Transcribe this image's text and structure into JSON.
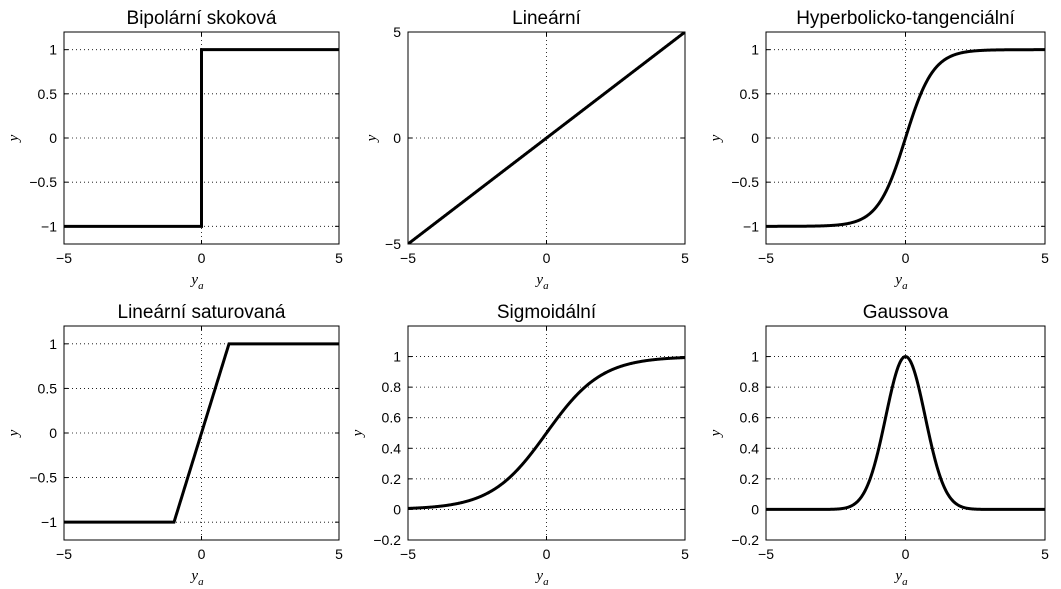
{
  "charts": [
    {
      "type": "line",
      "title": "Bipolární skoková",
      "xlabel": "y",
      "xlabel_sub": "a",
      "ylabel": "y",
      "xlim": [
        -5,
        5
      ],
      "ylim": [
        -1.2,
        1.2
      ],
      "xticks": [
        -5,
        0,
        5
      ],
      "xtick_labels": [
        "−5",
        "0",
        "5"
      ],
      "yticks": [
        -1,
        -0.5,
        0,
        0.5,
        1
      ],
      "ytick_labels": [
        "−1",
        "−0.5",
        "0",
        "0.5",
        "1"
      ],
      "grid": true,
      "color": "#000000",
      "function": "bipolar_step"
    },
    {
      "type": "line",
      "title": "Lineární",
      "xlabel": "y",
      "xlabel_sub": "a",
      "ylabel": "y",
      "xlim": [
        -5,
        5
      ],
      "ylim": [
        -5,
        5
      ],
      "xticks": [
        -5,
        0,
        5
      ],
      "xtick_labels": [
        "−5",
        "0",
        "5"
      ],
      "yticks": [
        -5,
        0,
        5
      ],
      "ytick_labels": [
        "−5",
        "0",
        "5"
      ],
      "grid": true,
      "color": "#000000",
      "function": "linear"
    },
    {
      "type": "line",
      "title": "Hyperbolicko-tangenciální",
      "xlabel": "y",
      "xlabel_sub": "a",
      "ylabel": "y",
      "xlim": [
        -5,
        5
      ],
      "ylim": [
        -1.2,
        1.2
      ],
      "xticks": [
        -5,
        0,
        5
      ],
      "xtick_labels": [
        "−5",
        "0",
        "5"
      ],
      "yticks": [
        -1,
        -0.5,
        0,
        0.5,
        1
      ],
      "ytick_labels": [
        "−1",
        "−0.5",
        "0",
        "0.5",
        "1"
      ],
      "grid": true,
      "color": "#000000",
      "function": "tanh"
    },
    {
      "type": "line",
      "title": "Lineární saturovaná",
      "xlabel": "y",
      "xlabel_sub": "a",
      "ylabel": "y",
      "xlim": [
        -5,
        5
      ],
      "ylim": [
        -1.2,
        1.2
      ],
      "xticks": [
        -5,
        0,
        5
      ],
      "xtick_labels": [
        "−5",
        "0",
        "5"
      ],
      "yticks": [
        -1,
        -0.5,
        0,
        0.5,
        1
      ],
      "ytick_labels": [
        "−1",
        "−0.5",
        "0",
        "0.5",
        "1"
      ],
      "grid": true,
      "color": "#000000",
      "function": "saturated_linear"
    },
    {
      "type": "line",
      "title": "Sigmoidální",
      "xlabel": "y",
      "xlabel_sub": "a",
      "ylabel": "y",
      "xlim": [
        -5,
        5
      ],
      "ylim": [
        -0.2,
        1.2
      ],
      "xticks": [
        -5,
        0,
        5
      ],
      "xtick_labels": [
        "−5",
        "0",
        "5"
      ],
      "yticks": [
        -0.2,
        0,
        0.2,
        0.4,
        0.6,
        0.8,
        1
      ],
      "ytick_labels": [
        "−0.2",
        "0",
        "0.2",
        "0.4",
        "0.6",
        "0.8",
        "1"
      ],
      "grid": true,
      "color": "#000000",
      "function": "sigmoid"
    },
    {
      "type": "line",
      "title": "Gaussova",
      "xlabel": "y",
      "xlabel_sub": "a",
      "ylabel": "y",
      "xlim": [
        -5,
        5
      ],
      "ylim": [
        -0.2,
        1.2
      ],
      "xticks": [
        -5,
        0,
        5
      ],
      "xtick_labels": [
        "−5",
        "0",
        "5"
      ],
      "yticks": [
        -0.2,
        0,
        0.2,
        0.4,
        0.6,
        0.8,
        1
      ],
      "ytick_labels": [
        "−0.2",
        "0",
        "0.2",
        "0.4",
        "0.6",
        "0.8",
        "1"
      ],
      "grid": true,
      "color": "#000000",
      "function": "gaussian"
    }
  ],
  "chart_data": [
    {
      "type": "line",
      "title": "Bipolární skoková",
      "xlabel": "y_a",
      "ylabel": "y",
      "xlim": [
        -5,
        5
      ],
      "ylim": [
        -1.2,
        1.2
      ],
      "grid": true,
      "series": [
        {
          "x": [
            -5,
            0,
            0,
            5
          ],
          "y": [
            -1,
            -1,
            1,
            1
          ]
        }
      ]
    },
    {
      "type": "line",
      "title": "Lineární",
      "xlabel": "y_a",
      "ylabel": "y",
      "xlim": [
        -5,
        5
      ],
      "ylim": [
        -5,
        5
      ],
      "grid": true,
      "series": [
        {
          "x": [
            -5,
            5
          ],
          "y": [
            -5,
            5
          ]
        }
      ]
    },
    {
      "type": "line",
      "title": "Hyperbolicko-tangenciální",
      "xlabel": "y_a",
      "ylabel": "y",
      "xlim": [
        -5,
        5
      ],
      "ylim": [
        -1.2,
        1.2
      ],
      "grid": true,
      "series": [
        {
          "x": [
            -5,
            -4,
            -3,
            -2,
            -1,
            0,
            1,
            2,
            3,
            4,
            5
          ],
          "y": [
            -1.0,
            -0.999,
            -0.995,
            -0.964,
            -0.762,
            0,
            0.762,
            0.964,
            0.995,
            0.999,
            1.0
          ]
        }
      ]
    },
    {
      "type": "line",
      "title": "Lineární saturovaná",
      "xlabel": "y_a",
      "ylabel": "y",
      "xlim": [
        -5,
        5
      ],
      "ylim": [
        -1.2,
        1.2
      ],
      "grid": true,
      "series": [
        {
          "x": [
            -5,
            -1,
            1,
            5
          ],
          "y": [
            -1,
            -1,
            1,
            1
          ]
        }
      ]
    },
    {
      "type": "line",
      "title": "Sigmoidální",
      "xlabel": "y_a",
      "ylabel": "y",
      "xlim": [
        -5,
        5
      ],
      "ylim": [
        -0.2,
        1.2
      ],
      "grid": true,
      "series": [
        {
          "x": [
            -5,
            -4,
            -3,
            -2,
            -1,
            0,
            1,
            2,
            3,
            4,
            5
          ],
          "y": [
            0.007,
            0.018,
            0.047,
            0.119,
            0.269,
            0.5,
            0.731,
            0.881,
            0.953,
            0.982,
            0.993
          ]
        }
      ]
    },
    {
      "type": "line",
      "title": "Gaussova",
      "xlabel": "y_a",
      "ylabel": "y",
      "xlim": [
        -5,
        5
      ],
      "ylim": [
        -0.2,
        1.2
      ],
      "grid": true,
      "series": [
        {
          "x": [
            -5,
            -3,
            -2,
            -1.5,
            -1,
            -0.5,
            0,
            0.5,
            1,
            1.5,
            2,
            3,
            5
          ],
          "y": [
            0,
            0.0001,
            0.018,
            0.105,
            0.368,
            0.779,
            1,
            0.779,
            0.368,
            0.105,
            0.018,
            0.0001,
            0
          ]
        }
      ]
    }
  ]
}
